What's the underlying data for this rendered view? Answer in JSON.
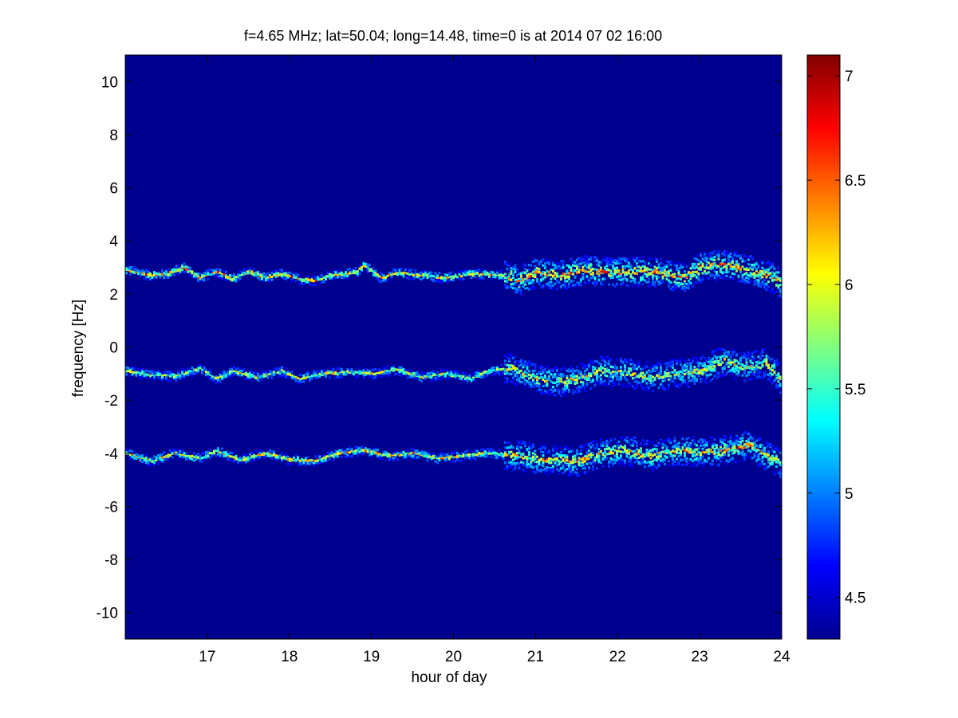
{
  "chart_data": {
    "type": "heatmap",
    "title": "f=4.65 MHz;  lat=50.04; long=14.48, time=0 is at 2014 07 02 16:00",
    "xlabel": "hour of day",
    "ylabel": "frequency [Hz]",
    "xlim": [
      16.0,
      24.0
    ],
    "ylim": [
      -11,
      11
    ],
    "x_ticks": [
      "17",
      "18",
      "19",
      "20",
      "21",
      "22",
      "23",
      "24"
    ],
    "x_tick_values": [
      17,
      18,
      19,
      20,
      21,
      22,
      23,
      24
    ],
    "y_ticks": [
      "10",
      "8",
      "6",
      "4",
      "2",
      "0",
      "-2",
      "-4",
      "-6",
      "-8",
      "-10"
    ],
    "y_tick_values": [
      10,
      8,
      6,
      4,
      2,
      0,
      -2,
      -4,
      -6,
      -8,
      -10
    ],
    "colorbar": {
      "colormap": "jet",
      "range": [
        4.3,
        7.1
      ],
      "ticks": [
        "7",
        "6.5",
        "6",
        "5.5",
        "5",
        "4.5"
      ],
      "tick_values": [
        7,
        6.5,
        6,
        5.5,
        5,
        4.5
      ]
    },
    "background_value": 4.35,
    "grid": false,
    "traces": [
      {
        "base_frequency": 2.75,
        "points": [
          [
            16.0,
            2.9
          ],
          [
            16.3,
            2.7
          ],
          [
            16.5,
            2.75
          ],
          [
            16.7,
            3.0
          ],
          [
            16.9,
            2.6
          ],
          [
            17.1,
            2.85
          ],
          [
            17.3,
            2.55
          ],
          [
            17.5,
            2.85
          ],
          [
            17.7,
            2.6
          ],
          [
            17.9,
            2.75
          ],
          [
            18.1,
            2.55
          ],
          [
            18.3,
            2.5
          ],
          [
            18.5,
            2.7
          ],
          [
            18.8,
            2.8
          ],
          [
            18.9,
            3.1
          ],
          [
            19.1,
            2.6
          ],
          [
            19.3,
            2.8
          ],
          [
            19.6,
            2.7
          ],
          [
            19.9,
            2.6
          ],
          [
            20.2,
            2.75
          ],
          [
            20.6,
            2.7
          ],
          [
            20.8,
            2.5
          ],
          [
            21.0,
            2.8
          ],
          [
            21.3,
            2.7
          ],
          [
            21.6,
            2.9
          ],
          [
            21.9,
            2.8
          ],
          [
            22.2,
            2.85
          ],
          [
            22.5,
            2.8
          ],
          [
            22.8,
            2.6
          ],
          [
            23.0,
            3.0
          ],
          [
            23.3,
            3.1
          ],
          [
            23.6,
            2.9
          ],
          [
            23.8,
            2.7
          ],
          [
            24.0,
            2.4
          ]
        ],
        "peak": 7.0
      },
      {
        "base_frequency": -1.0,
        "points": [
          [
            16.0,
            -0.9
          ],
          [
            16.3,
            -1.05
          ],
          [
            16.6,
            -1.1
          ],
          [
            16.9,
            -0.8
          ],
          [
            17.1,
            -1.2
          ],
          [
            17.3,
            -0.9
          ],
          [
            17.6,
            -1.15
          ],
          [
            17.9,
            -0.9
          ],
          [
            18.1,
            -1.2
          ],
          [
            18.4,
            -1.0
          ],
          [
            18.7,
            -0.95
          ],
          [
            19.0,
            -1.0
          ],
          [
            19.3,
            -0.85
          ],
          [
            19.6,
            -1.15
          ],
          [
            19.9,
            -1.0
          ],
          [
            20.2,
            -1.2
          ],
          [
            20.4,
            -0.9
          ],
          [
            20.7,
            -0.8
          ],
          [
            21.0,
            -1.2
          ],
          [
            21.3,
            -1.3
          ],
          [
            21.5,
            -1.2
          ],
          [
            21.8,
            -0.9
          ],
          [
            22.1,
            -0.95
          ],
          [
            22.4,
            -1.15
          ],
          [
            22.7,
            -1.0
          ],
          [
            23.0,
            -0.9
          ],
          [
            23.3,
            -0.5
          ],
          [
            23.5,
            -0.8
          ],
          [
            23.8,
            -0.6
          ],
          [
            24.0,
            -1.3
          ]
        ],
        "peak": 6.6
      },
      {
        "base_frequency": -4.0,
        "points": [
          [
            16.0,
            -4.0
          ],
          [
            16.3,
            -4.3
          ],
          [
            16.6,
            -4.0
          ],
          [
            16.9,
            -4.2
          ],
          [
            17.1,
            -3.9
          ],
          [
            17.4,
            -4.25
          ],
          [
            17.7,
            -4.0
          ],
          [
            18.0,
            -4.25
          ],
          [
            18.3,
            -4.3
          ],
          [
            18.6,
            -4.0
          ],
          [
            18.9,
            -3.9
          ],
          [
            19.2,
            -4.1
          ],
          [
            19.5,
            -4.0
          ],
          [
            19.8,
            -4.2
          ],
          [
            20.1,
            -4.1
          ],
          [
            20.4,
            -4.0
          ],
          [
            20.8,
            -4.1
          ],
          [
            21.1,
            -4.25
          ],
          [
            21.5,
            -4.3
          ],
          [
            21.8,
            -4.0
          ],
          [
            22.1,
            -3.9
          ],
          [
            22.4,
            -4.1
          ],
          [
            22.7,
            -3.9
          ],
          [
            23.0,
            -3.95
          ],
          [
            23.3,
            -3.9
          ],
          [
            23.6,
            -3.7
          ],
          [
            23.8,
            -4.1
          ],
          [
            24.0,
            -4.4
          ]
        ],
        "peak": 6.8
      }
    ]
  }
}
